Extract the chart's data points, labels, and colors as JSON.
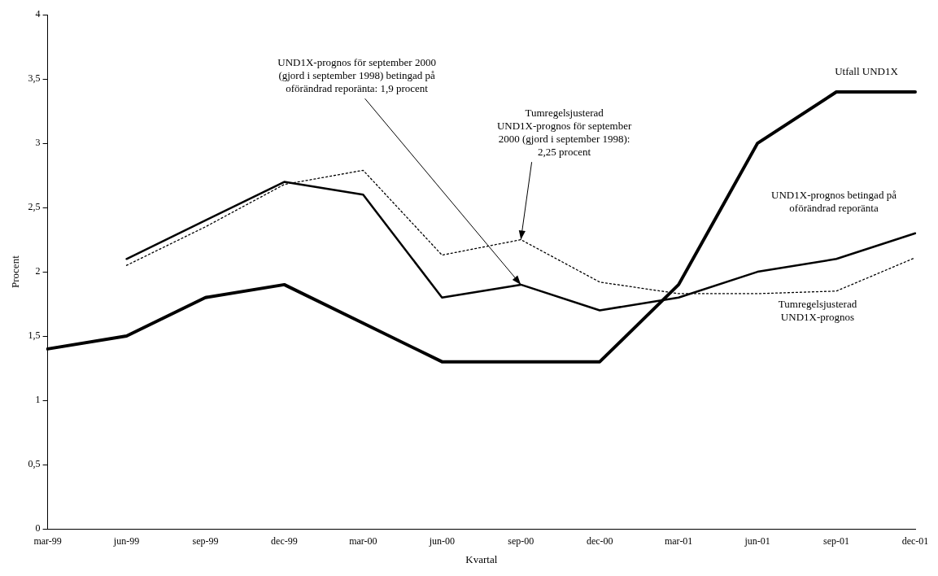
{
  "chart_data": {
    "type": "line",
    "xlabel": "Kvartal",
    "ylabel": "Procent",
    "categories": [
      "mar-99",
      "jun-99",
      "sep-99",
      "dec-99",
      "mar-00",
      "jun-00",
      "sep-00",
      "dec-00",
      "mar-01",
      "jun-01",
      "sep-01",
      "dec-01"
    ],
    "series": [
      {
        "name": "Utfall UND1X",
        "color": "#000000",
        "line_style": "solid",
        "values": [
          1.4,
          1.5,
          1.8,
          1.9,
          1.6,
          1.3,
          1.3,
          1.3,
          1.9,
          3.0,
          3.4,
          3.4
        ]
      },
      {
        "name": "UND1X-prognos betingad på oförändrad reporänta",
        "color": "#000000",
        "line_style": "solid",
        "values": [
          null,
          2.1,
          2.4,
          2.7,
          2.6,
          1.8,
          1.9,
          1.7,
          1.8,
          2.0,
          2.1,
          2.3
        ]
      },
      {
        "name": "Tumregelsjusterad UND1X-prognos",
        "color": "#000000",
        "line_style": "dotted",
        "values": [
          null,
          2.05,
          2.35,
          2.68,
          2.79,
          2.13,
          2.25,
          1.92,
          1.83,
          1.83,
          1.85,
          2.11
        ]
      }
    ],
    "ylim": [
      0,
      4
    ],
    "yticks": [
      0,
      {
        "value": 0.5,
        "label": "0,5"
      },
      1,
      {
        "value": 1.5,
        "label": "1,5"
      },
      2,
      {
        "value": 2.5,
        "label": "2,5"
      },
      3,
      {
        "value": 3.5,
        "label": "3,5"
      },
      4
    ],
    "annotations": [
      {
        "text": "UND1X-prognos för september 2000 (gjord i september 1998) betingad på oförändrad reporänta: 1,9 procent",
        "x": "sep-00",
        "y": 1.9
      },
      {
        "text": "Tumregelsjusterad UND1X-prognos för september 2000 (gjord i september 1998): 2,25 procent",
        "x": "sep-00",
        "y": 2.25
      }
    ],
    "grid": false,
    "legend": false,
    "marker": "none"
  }
}
